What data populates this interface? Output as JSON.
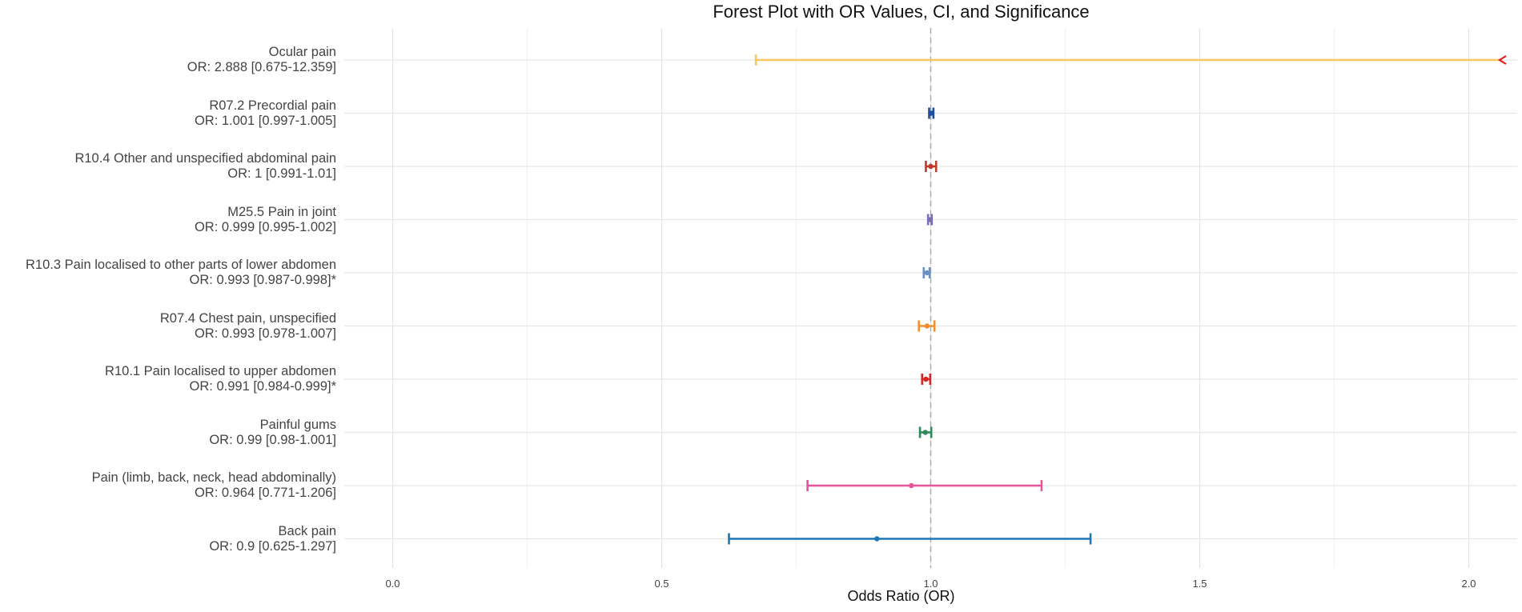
{
  "chart_data": {
    "type": "forest",
    "title": "Forest Plot with OR Values, CI, and Significance",
    "xlabel": "Odds Ratio (OR)",
    "ylabel": "",
    "xlim": [
      -0.09,
      2.09
    ],
    "xticks": [
      0.0,
      0.5,
      1.0,
      1.5,
      2.0
    ],
    "xtick_labels": [
      "0.0",
      "0.5",
      "1.0",
      "1.5",
      "2.0"
    ],
    "reference_line": 1.0,
    "grid": true,
    "rows": [
      {
        "name": "Ocular pain",
        "label": "OR: 2.888 [0.675-12.359]",
        "or": 2.888,
        "lower": 0.675,
        "upper": 12.359,
        "color": "#f6c85f",
        "clipped_right": true,
        "clip_marker_color": "#e41a1c"
      },
      {
        "name": "R07.2 Precordial pain",
        "label": "OR: 1.001 [0.997-1.005]",
        "or": 1.001,
        "lower": 0.997,
        "upper": 1.005,
        "color": "#1f4e9c"
      },
      {
        "name": "R10.4 Other and unspecified abdominal pain",
        "label": "OR: 1 [0.991-1.01]",
        "or": 1.0,
        "lower": 0.991,
        "upper": 1.01,
        "color": "#c0392b"
      },
      {
        "name": "M25.5 Pain in joint",
        "label": "OR: 0.999 [0.995-1.002]",
        "or": 0.999,
        "lower": 0.995,
        "upper": 1.002,
        "color": "#7b6fb5"
      },
      {
        "name": "R10.3 Pain localised to other parts of lower abdomen",
        "label": "OR: 0.993 [0.987-0.998]*",
        "or": 0.993,
        "lower": 0.987,
        "upper": 0.998,
        "color": "#6b8fc4"
      },
      {
        "name": "R07.4 Chest pain, unspecified",
        "label": "OR: 0.993 [0.978-1.007]",
        "or": 0.993,
        "lower": 0.978,
        "upper": 1.007,
        "color": "#f28e2b"
      },
      {
        "name": "R10.1 Pain localised to upper abdomen",
        "label": "OR: 0.991 [0.984-0.999]*",
        "or": 0.991,
        "lower": 0.984,
        "upper": 0.999,
        "color": "#d62728"
      },
      {
        "name": "Painful gums",
        "label": "OR: 0.99 [0.98-1.001]",
        "or": 0.99,
        "lower": 0.98,
        "upper": 1.001,
        "color": "#2e8b57"
      },
      {
        "name": "Pain (limb, back, neck, head abdominally)",
        "label": "OR: 0.964 [0.771-1.206]",
        "or": 0.964,
        "lower": 0.771,
        "upper": 1.206,
        "color": "#e7539b"
      },
      {
        "name": "Back pain",
        "label": "OR: 0.9 [0.625-1.297]",
        "or": 0.9,
        "lower": 0.625,
        "upper": 1.297,
        "color": "#1f77b4"
      }
    ]
  }
}
